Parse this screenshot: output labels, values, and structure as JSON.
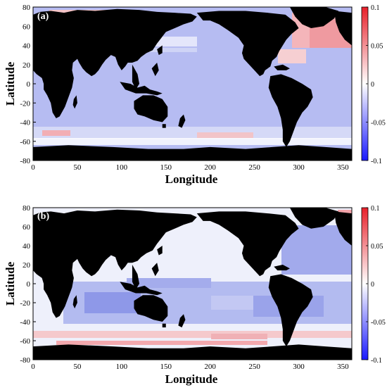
{
  "panels": [
    {
      "id": "a",
      "label": "(a)",
      "xlabel": "Longitude",
      "ylabel": "Latitude",
      "xticks": [
        "0",
        "50",
        "100",
        "150",
        "200",
        "250",
        "300",
        "350"
      ],
      "yticks": [
        "80",
        "60",
        "40",
        "20",
        "0",
        "-20",
        "-40",
        "-60",
        "-80"
      ],
      "colorbar": {
        "ticks": [
          "0.1",
          "0.05",
          "0",
          "-0.05",
          "-0.1"
        ],
        "colors": {
          "max": "#e8202a",
          "mid": "#ffffff",
          "min": "#1a1aff"
        }
      },
      "ocean_tint": "#b6bcf2"
    },
    {
      "id": "b",
      "label": "(b)",
      "xlabel": "Longitude",
      "ylabel": "Latitude",
      "xticks": [
        "0",
        "50",
        "100",
        "150",
        "200",
        "250",
        "300",
        "350"
      ],
      "yticks": [
        "80",
        "60",
        "40",
        "20",
        "0",
        "-20",
        "-40",
        "-60",
        "-80"
      ],
      "colorbar": {
        "ticks": [
          "0.1",
          "0.05",
          "0",
          "-0.05",
          "-0.1"
        ],
        "colors": {
          "max": "#e8202a",
          "mid": "#ffffff",
          "min": "#1a1aff"
        }
      },
      "ocean_tint": "#eef0fb"
    }
  ],
  "colors": {
    "land": "#000000",
    "axis": "#000000"
  }
}
